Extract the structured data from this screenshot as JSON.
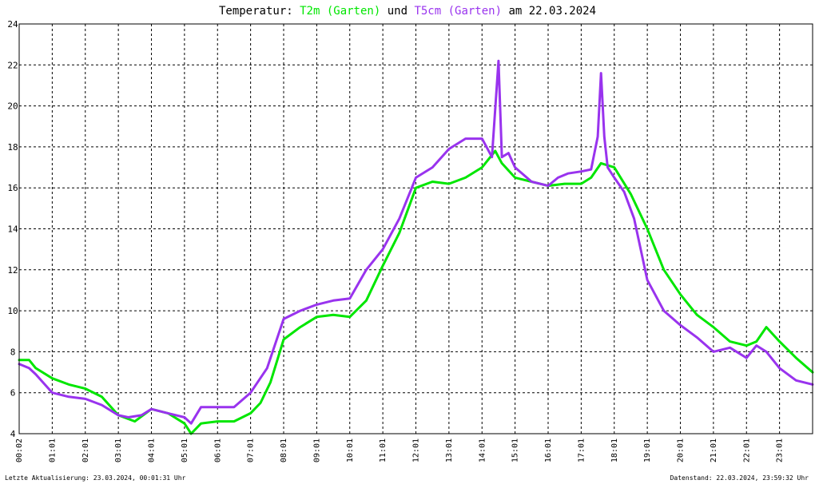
{
  "title": {
    "prefix": "Temperatur: ",
    "series1": "T2m (Garten)",
    "middle": " und ",
    "series2": "T5cm (Garten)",
    "suffix": " am 22.03.2024"
  },
  "footer": {
    "left": "Letzte Aktualisierung: 23.03.2024, 00:01:31 Uhr",
    "right": "Datenstand: 22.03.2024, 23:59:32 Uhr"
  },
  "chart_data": {
    "type": "line",
    "title": "Temperatur: T2m (Garten) und T5cm (Garten) am 22.03.2024",
    "xlabel": "",
    "ylabel": "",
    "xlim": [
      0,
      24
    ],
    "ylim": [
      4,
      24
    ],
    "grid": true,
    "y_ticks": [
      "4",
      "6",
      "8",
      "10",
      "12",
      "14",
      "16",
      "18",
      "20",
      "22",
      "24"
    ],
    "x_ticks": [
      "00:02",
      "01:01",
      "02:01",
      "03:01",
      "04:01",
      "05:01",
      "06:01",
      "07:01",
      "08:01",
      "09:01",
      "10:01",
      "11:01",
      "12:01",
      "13:01",
      "14:01",
      "15:01",
      "16:01",
      "17:01",
      "18:01",
      "19:01",
      "20:01",
      "21:01",
      "22:01",
      "23:01"
    ],
    "series": [
      {
        "name": "T2m (Garten)",
        "color": "#00e600",
        "x": [
          0.0,
          0.3,
          0.5,
          1.0,
          1.5,
          2.0,
          2.5,
          3.0,
          3.5,
          4.0,
          4.5,
          5.0,
          5.2,
          5.5,
          6.0,
          6.5,
          7.0,
          7.3,
          7.6,
          8.0,
          8.5,
          9.0,
          9.5,
          10.0,
          10.5,
          11.0,
          11.5,
          12.0,
          12.5,
          13.0,
          13.5,
          14.0,
          14.4,
          14.6,
          15.0,
          15.5,
          16.0,
          16.5,
          17.0,
          17.3,
          17.6,
          18.0,
          18.5,
          19.0,
          19.5,
          20.0,
          20.5,
          21.0,
          21.5,
          22.0,
          22.3,
          22.6,
          23.0,
          23.5,
          24.0
        ],
        "y": [
          7.6,
          7.6,
          7.2,
          6.7,
          6.4,
          6.2,
          5.8,
          4.9,
          4.6,
          5.2,
          5.0,
          4.5,
          4.0,
          4.5,
          4.6,
          4.6,
          5.0,
          5.5,
          6.5,
          8.6,
          9.2,
          9.7,
          9.8,
          9.7,
          10.5,
          12.2,
          13.8,
          16.0,
          16.3,
          16.2,
          16.5,
          17.0,
          17.8,
          17.2,
          16.5,
          16.3,
          16.1,
          16.2,
          16.2,
          16.5,
          17.2,
          17.0,
          15.7,
          14.0,
          12.0,
          10.8,
          9.8,
          9.2,
          8.5,
          8.3,
          8.5,
          9.2,
          8.5,
          7.7,
          7.0
        ]
      },
      {
        "name": "T5cm (Garten)",
        "color": "#9933ee",
        "x": [
          0.0,
          0.3,
          0.5,
          1.0,
          1.5,
          2.0,
          2.5,
          3.0,
          3.3,
          3.7,
          4.0,
          4.5,
          5.0,
          5.2,
          5.5,
          6.0,
          6.5,
          7.0,
          7.5,
          8.0,
          8.5,
          9.0,
          9.5,
          10.0,
          10.5,
          11.0,
          11.5,
          12.0,
          12.5,
          13.0,
          13.5,
          14.0,
          14.3,
          14.5,
          14.6,
          14.8,
          15.0,
          15.5,
          16.0,
          16.3,
          16.6,
          17.0,
          17.3,
          17.5,
          17.6,
          17.7,
          17.8,
          18.0,
          18.3,
          18.6,
          19.0,
          19.5,
          20.0,
          20.5,
          21.0,
          21.5,
          22.0,
          22.3,
          22.6,
          23.0,
          23.5,
          24.0
        ],
        "y": [
          7.4,
          7.2,
          6.9,
          6.0,
          5.8,
          5.7,
          5.4,
          4.9,
          4.8,
          4.9,
          5.2,
          5.0,
          4.8,
          4.5,
          5.3,
          5.3,
          5.3,
          6.0,
          7.2,
          9.6,
          10.0,
          10.3,
          10.5,
          10.6,
          12.0,
          13.0,
          14.5,
          16.5,
          17.0,
          17.9,
          18.4,
          18.4,
          17.5,
          22.2,
          17.5,
          17.7,
          17.0,
          16.3,
          16.1,
          16.5,
          16.7,
          16.8,
          16.9,
          18.5,
          21.6,
          18.5,
          17.0,
          16.5,
          15.8,
          14.5,
          11.5,
          10.0,
          9.3,
          8.7,
          8.0,
          8.2,
          7.7,
          8.3,
          8.0,
          7.2,
          6.6,
          6.4
        ]
      }
    ]
  }
}
